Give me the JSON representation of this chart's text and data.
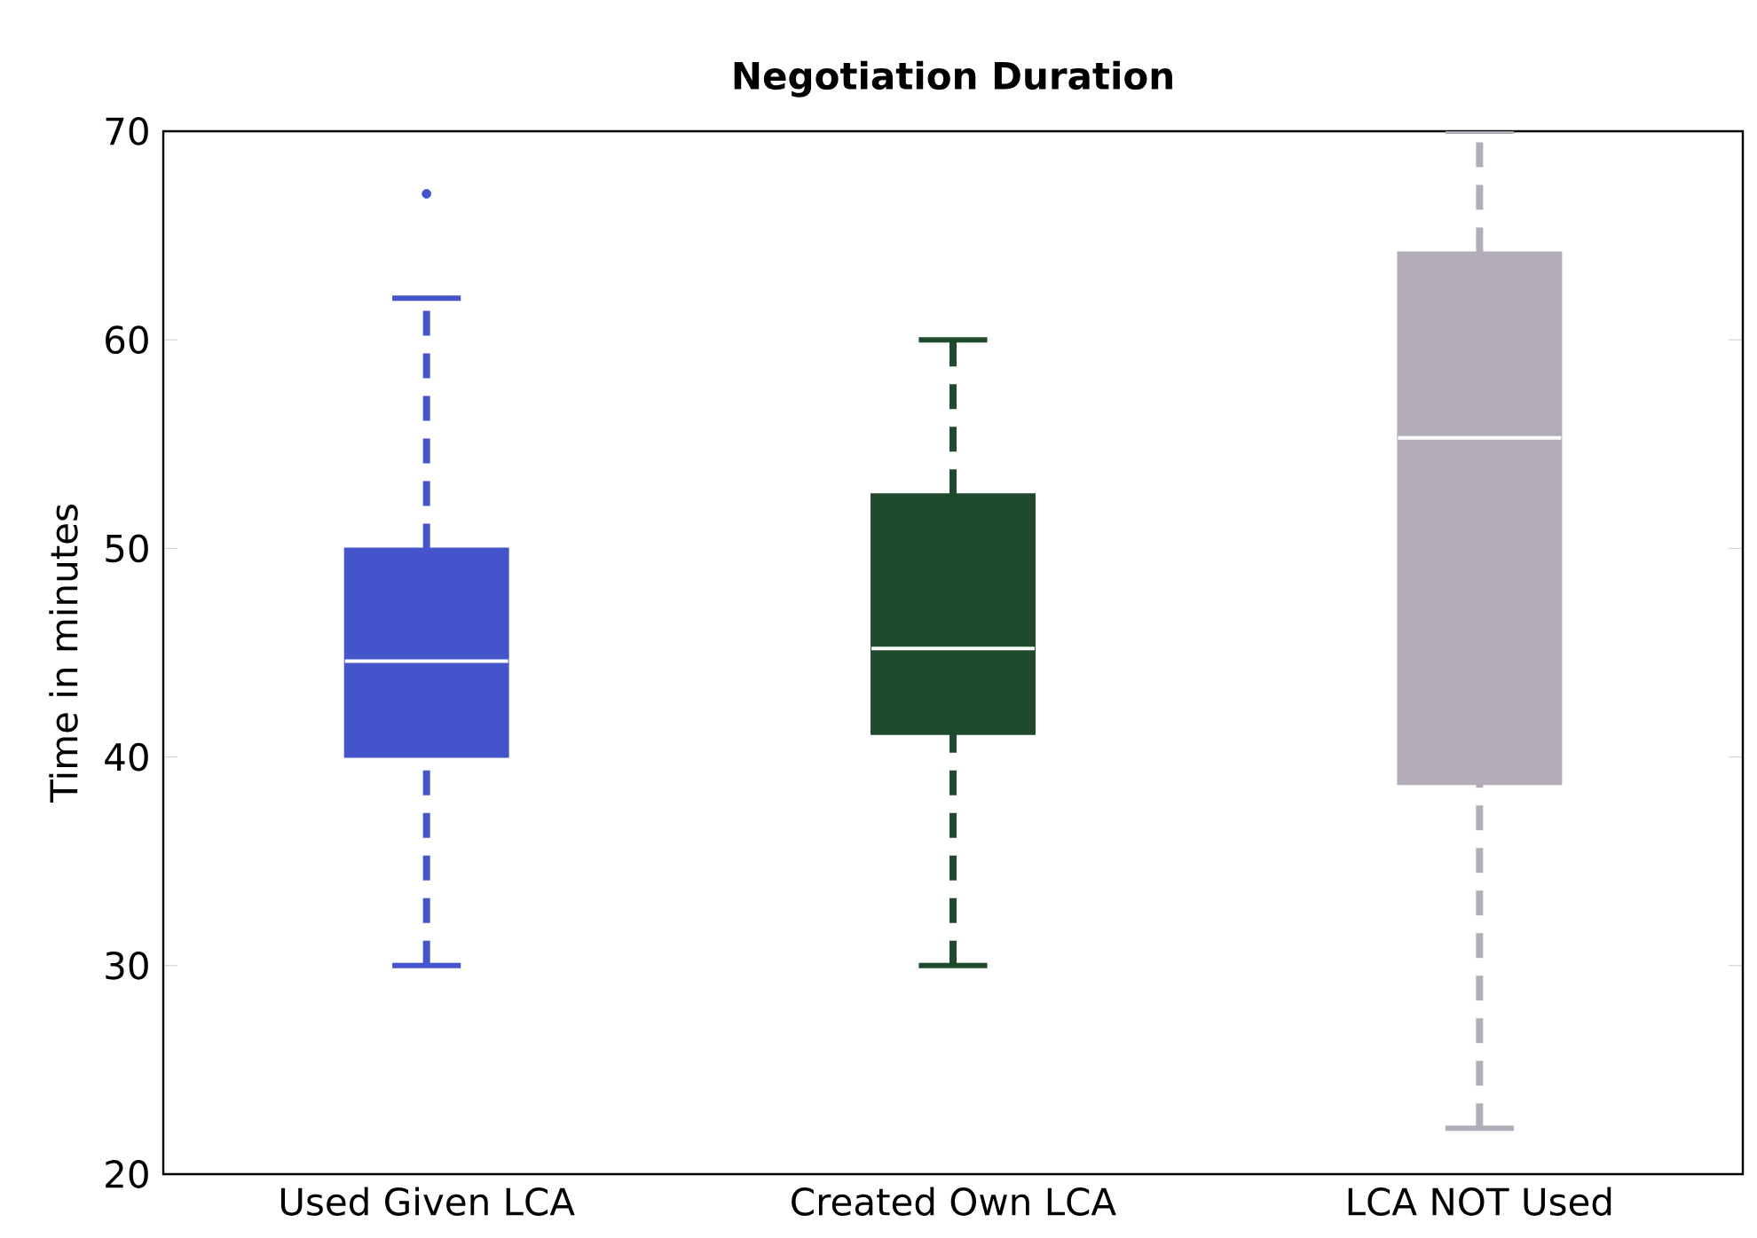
{
  "chart_data": {
    "type": "box",
    "title": "Negotiation Duration",
    "ylabel": "Time in minutes",
    "categories": [
      "Used Given LCA",
      "Created Own LCA",
      "LCA NOT Used"
    ],
    "colors": [
      "#4455cc",
      "#1f4a2c",
      "#b2adb9"
    ],
    "boxes": [
      {
        "low": 30,
        "q1": 40,
        "median": 44.6,
        "q3": 50,
        "high": 62,
        "outliers": [
          67
        ]
      },
      {
        "low": 30,
        "q1": 41.1,
        "median": 45.2,
        "q3": 52.6,
        "high": 60
      },
      {
        "low": 22.2,
        "q1": 38.7,
        "median": 55.3,
        "q3": 64.2,
        "high": 70
      }
    ],
    "ylim": [
      20,
      70
    ],
    "yticks": [
      20,
      30,
      40,
      50,
      60,
      70
    ],
    "line_style": "dashed",
    "marker": "circle"
  }
}
